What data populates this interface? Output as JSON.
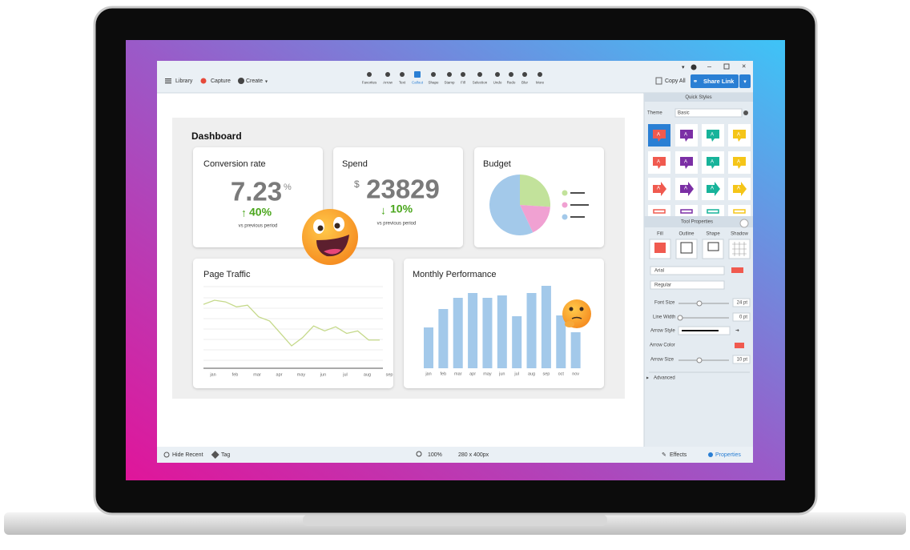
{
  "toolbar": {
    "left": [
      "Library",
      "Capture",
      "Create"
    ],
    "tools": [
      "Favorites",
      "Arrow",
      "Text",
      "Callout",
      "Shape",
      "Stamp",
      "Fill",
      "Selection",
      "Undo",
      "Redo",
      "Blur",
      "More"
    ],
    "copy_all": "Copy All",
    "share_link": "Share Link"
  },
  "canvas": {
    "title": "Dashboard",
    "conversion": {
      "title": "Conversion rate",
      "value": "7.23",
      "unit": "%",
      "change": "40%",
      "note": "vs previous period"
    },
    "spend": {
      "title": "Spend",
      "currency": "$",
      "value": "23829",
      "change": "10%",
      "note": "vs previous period"
    }
  },
  "chart_data": [
    {
      "type": "pie",
      "title": "Budget",
      "values": [
        26,
        17,
        57
      ],
      "colors": [
        "#c2e29b",
        "#f0a1d2",
        "#a3c9ea"
      ]
    },
    {
      "type": "line",
      "title": "Page Traffic",
      "categories": [
        "jan",
        null,
        "feb",
        null,
        "mar",
        null,
        "apr",
        null,
        "may",
        null,
        "jun",
        null,
        "jul",
        null,
        "aug",
        null,
        "sep"
      ],
      "values": [
        70,
        75,
        73,
        67,
        69,
        55,
        50,
        35,
        20,
        30,
        44,
        38,
        43,
        35,
        38,
        27,
        27
      ],
      "color": "#c5d98a"
    },
    {
      "type": "bar",
      "title": "Monthly Performance",
      "categories": [
        "jan",
        "feb",
        "mar",
        "apr",
        "may",
        "jun",
        "jul",
        "aug",
        "sep",
        "oct",
        "nov"
      ],
      "values": [
        51,
        74,
        88,
        94,
        88,
        91,
        65,
        94,
        103,
        66,
        45
      ],
      "color": "#a3c9ea"
    }
  ],
  "right_panel": {
    "quick_styles": "Quick Styles",
    "theme_label": "Theme",
    "theme_value": "Basic",
    "swatch_text": "A",
    "swatch_colors": [
      "#f05a4f",
      "#7b2fa5",
      "#17b39a",
      "#f5c518"
    ],
    "tool_properties": "Tool Properties",
    "tabs": [
      "Fill",
      "Outline",
      "Shape",
      "Shadow"
    ],
    "font": "Arial",
    "style": "Regular",
    "font_size_label": "Font Size",
    "font_size": "24 pt",
    "line_width_label": "Line Width",
    "line_width": "0 pt",
    "arrow_style_label": "Arrow Style",
    "arrow_color_label": "Arrow Color",
    "arrow_size_label": "Arrow Size",
    "arrow_size": "10 pt",
    "advanced": "Advanced"
  },
  "status_bar": {
    "hide_recent": "Hide Recent",
    "tag": "Tag",
    "zoom": "100%",
    "size": "280 x 400px",
    "effects": "Effects",
    "properties": "Properties"
  }
}
